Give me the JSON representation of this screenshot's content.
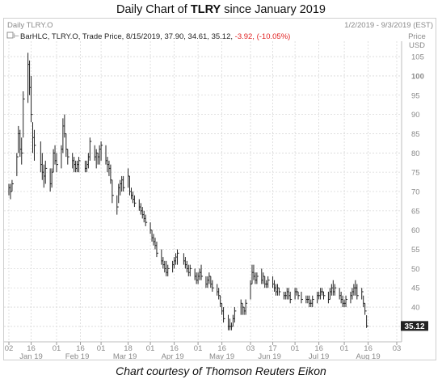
{
  "title": {
    "prefix": "Daily Chart of ",
    "ticker": "TLRY",
    "suffix": " since January 2019"
  },
  "caption": "Chart courtesy of Thomson Reuters Eikon",
  "header": {
    "symbol": "Daily TLRY.O",
    "date_range": "1/2/2019 - 9/3/2019 (EST)",
    "quote_prefix": "BarHLC, TLRY.O, Trade Price, 8/15/2019, 37.90, 34.61, 35.12, ",
    "quote_change": "-3.92, (-10.05%)",
    "axis_title_line1": "Price",
    "axis_title_line2": "USD",
    "last_price": "35.12"
  },
  "colors": {
    "bar": "#222222",
    "grid": "#d9d9d9",
    "change_negative": "#e02020",
    "last_price_box": "#222222",
    "axis_text": "#8a8a8a"
  },
  "chart_data": {
    "type": "bar",
    "style": "HLC",
    "title": "Daily Chart of TLRY since January 2019",
    "ylabel": "Price USD",
    "ylim": [
      31,
      109
    ],
    "y_ticks": [
      35,
      40,
      45,
      50,
      55,
      60,
      65,
      70,
      75,
      80,
      85,
      90,
      95,
      100,
      105
    ],
    "grid": true,
    "x_tick_labels": [
      "02",
      "16",
      "01",
      "16",
      "01",
      "18",
      "01",
      "16",
      "01",
      "16",
      "03",
      "17",
      "01",
      "16",
      "01",
      "16",
      "03"
    ],
    "month_labels": [
      "Jan 19",
      "Feb 19",
      "Mar 19",
      "Apr 19",
      "May 19",
      "Jun 19",
      "Jul 19",
      "Aug 19"
    ],
    "x_range": [
      "2019-01-02",
      "2019-09-03"
    ],
    "series": [
      {
        "values": [
          [
            "2019-01-02",
            72,
            69,
            71
          ],
          [
            "2019-01-03",
            72,
            68,
            70
          ],
          [
            "2019-01-04",
            73,
            70,
            72
          ],
          [
            "2019-01-07",
            80,
            74,
            79
          ],
          [
            "2019-01-08",
            87,
            80,
            85
          ],
          [
            "2019-01-09",
            86,
            79,
            81
          ],
          [
            "2019-01-10",
            84,
            77,
            80
          ],
          [
            "2019-01-11",
            96,
            84,
            94
          ],
          [
            "2019-01-14",
            106,
            93,
            103
          ],
          [
            "2019-01-15",
            104,
            95,
            97
          ],
          [
            "2019-01-16",
            100,
            88,
            90
          ],
          [
            "2019-01-17",
            88,
            80,
            84
          ],
          [
            "2019-01-18",
            86,
            78,
            82
          ],
          [
            "2019-01-22",
            83,
            75,
            77
          ],
          [
            "2019-01-23",
            80,
            73,
            75
          ],
          [
            "2019-01-24",
            77,
            71,
            74
          ],
          [
            "2019-01-25",
            78,
            72,
            76
          ],
          [
            "2019-01-28",
            76,
            70,
            72
          ],
          [
            "2019-01-29",
            76,
            71,
            75
          ],
          [
            "2019-01-30",
            81,
            75,
            80
          ],
          [
            "2019-01-31",
            82,
            77,
            78
          ],
          [
            "2019-02-01",
            80,
            75,
            77
          ],
          [
            "2019-02-04",
            82,
            76,
            81
          ],
          [
            "2019-02-05",
            89,
            80,
            87
          ],
          [
            "2019-02-06",
            90,
            84,
            85
          ],
          [
            "2019-02-07",
            85,
            79,
            81
          ],
          [
            "2019-02-08",
            81,
            77,
            79
          ],
          [
            "2019-02-11",
            80,
            76,
            78
          ],
          [
            "2019-02-12",
            79,
            75,
            77
          ],
          [
            "2019-02-13",
            78,
            75,
            76
          ],
          [
            "2019-02-14",
            78,
            75,
            77
          ],
          [
            "2019-02-15",
            79,
            75,
            78
          ],
          [
            "2019-02-19",
            78,
            75,
            76
          ],
          [
            "2019-02-20",
            78,
            75,
            77
          ],
          [
            "2019-02-21",
            80,
            76,
            79
          ],
          [
            "2019-02-22",
            84,
            78,
            83
          ],
          [
            "2019-02-25",
            82,
            78,
            79
          ],
          [
            "2019-02-26",
            81,
            76,
            80
          ],
          [
            "2019-02-27",
            80,
            77,
            79
          ],
          [
            "2019-02-28",
            82,
            77,
            81
          ],
          [
            "2019-03-01",
            83,
            78,
            82
          ],
          [
            "2019-03-04",
            82,
            77,
            78
          ],
          [
            "2019-03-05",
            79,
            75,
            77
          ],
          [
            "2019-03-06",
            78,
            74,
            76
          ],
          [
            "2019-03-07",
            77,
            72,
            73
          ],
          [
            "2019-03-08",
            73,
            67,
            69
          ],
          [
            "2019-03-11",
            69,
            64,
            66
          ],
          [
            "2019-03-12",
            72,
            67,
            71
          ],
          [
            "2019-03-13",
            73,
            69,
            72
          ],
          [
            "2019-03-14",
            74,
            70,
            73
          ],
          [
            "2019-03-15",
            74,
            70,
            71
          ],
          [
            "2019-03-18",
            76,
            71,
            74
          ],
          [
            "2019-03-19",
            74,
            69,
            70
          ],
          [
            "2019-03-20",
            71,
            68,
            69
          ],
          [
            "2019-03-21",
            70,
            67,
            68
          ],
          [
            "2019-03-22",
            69,
            66,
            67
          ],
          [
            "2019-03-25",
            68,
            65,
            66
          ],
          [
            "2019-03-26",
            67,
            64,
            65
          ],
          [
            "2019-03-27",
            66,
            63,
            64
          ],
          [
            "2019-03-28",
            65,
            62,
            63
          ],
          [
            "2019-03-29",
            64,
            61,
            62
          ],
          [
            "2019-04-01",
            62,
            59,
            60
          ],
          [
            "2019-04-02",
            60,
            57,
            58
          ],
          [
            "2019-04-03",
            59,
            56,
            57
          ],
          [
            "2019-04-04",
            58,
            55,
            56
          ],
          [
            "2019-04-05",
            57,
            53,
            54
          ],
          [
            "2019-04-08",
            55,
            51,
            52
          ],
          [
            "2019-04-09",
            53,
            50,
            51
          ],
          [
            "2019-04-10",
            52,
            49,
            50
          ],
          [
            "2019-04-11",
            52,
            48,
            49
          ],
          [
            "2019-04-12",
            51,
            48,
            50
          ],
          [
            "2019-04-15",
            52,
            49,
            51
          ],
          [
            "2019-04-16",
            53,
            50,
            52
          ],
          [
            "2019-04-17",
            54,
            51,
            53
          ],
          [
            "2019-04-18",
            55,
            51,
            54
          ],
          [
            "2019-04-22",
            54,
            51,
            52
          ],
          [
            "2019-04-23",
            53,
            50,
            51
          ],
          [
            "2019-04-24",
            52,
            49,
            50
          ],
          [
            "2019-04-25",
            51,
            48,
            49
          ],
          [
            "2019-04-26",
            51,
            48,
            50
          ],
          [
            "2019-04-29",
            50,
            47,
            48
          ],
          [
            "2019-04-30",
            49,
            46,
            47
          ],
          [
            "2019-05-01",
            49,
            46,
            48
          ],
          [
            "2019-05-02",
            50,
            47,
            49
          ],
          [
            "2019-05-03",
            51,
            47,
            48
          ],
          [
            "2019-05-06",
            48,
            45,
            46
          ],
          [
            "2019-05-07",
            48,
            45,
            47
          ],
          [
            "2019-05-08",
            49,
            46,
            48
          ],
          [
            "2019-05-09",
            48,
            45,
            46
          ],
          [
            "2019-05-10",
            47,
            44,
            45
          ],
          [
            "2019-05-13",
            46,
            43,
            44
          ],
          [
            "2019-05-14",
            45,
            42,
            43
          ],
          [
            "2019-05-15",
            43,
            40,
            41
          ],
          [
            "2019-05-16",
            41,
            38,
            39
          ],
          [
            "2019-05-17",
            40,
            36,
            37
          ],
          [
            "2019-05-20",
            38,
            34,
            35
          ],
          [
            "2019-05-21",
            37,
            34,
            35
          ],
          [
            "2019-05-22",
            36,
            34,
            35
          ],
          [
            "2019-05-23",
            38,
            35,
            37
          ],
          [
            "2019-05-24",
            40,
            36,
            39
          ],
          [
            "2019-05-28",
            42,
            38,
            41
          ],
          [
            "2019-05-29",
            41,
            38,
            40
          ],
          [
            "2019-05-30",
            40,
            38,
            39
          ],
          [
            "2019-05-31",
            42,
            38,
            41
          ],
          [
            "2019-06-03",
            47,
            42,
            46
          ],
          [
            "2019-06-04",
            51,
            46,
            49
          ],
          [
            "2019-06-05",
            51,
            47,
            48
          ],
          [
            "2019-06-06",
            49,
            46,
            47
          ],
          [
            "2019-06-07",
            49,
            46,
            48
          ],
          [
            "2019-06-10",
            50,
            46,
            47
          ],
          [
            "2019-06-11",
            49,
            46,
            48
          ],
          [
            "2019-06-12",
            48,
            45,
            46
          ],
          [
            "2019-06-13",
            47,
            45,
            46
          ],
          [
            "2019-06-14",
            48,
            45,
            47
          ],
          [
            "2019-06-17",
            48,
            45,
            46
          ],
          [
            "2019-06-18",
            47,
            44,
            45
          ],
          [
            "2019-06-19",
            46,
            43,
            44
          ],
          [
            "2019-06-20",
            46,
            43,
            45
          ],
          [
            "2019-06-21",
            45,
            43,
            44
          ],
          [
            "2019-06-24",
            44,
            42,
            43
          ],
          [
            "2019-06-25",
            44,
            42,
            43
          ],
          [
            "2019-06-26",
            45,
            42,
            44
          ],
          [
            "2019-06-27",
            45,
            42,
            43
          ],
          [
            "2019-06-28",
            44,
            41,
            42
          ],
          [
            "2019-07-01",
            45,
            42,
            44
          ],
          [
            "2019-07-02",
            45,
            43,
            44
          ],
          [
            "2019-07-03",
            44,
            42,
            43
          ],
          [
            "2019-07-05",
            44,
            41,
            42
          ],
          [
            "2019-07-08",
            43,
            41,
            42
          ],
          [
            "2019-07-09",
            43,
            41,
            42
          ],
          [
            "2019-07-10",
            43,
            40,
            41
          ],
          [
            "2019-07-11",
            42,
            40,
            41
          ],
          [
            "2019-07-12",
            43,
            40,
            42
          ],
          [
            "2019-07-15",
            44,
            41,
            43
          ],
          [
            "2019-07-16",
            44,
            42,
            43
          ],
          [
            "2019-07-17",
            45,
            42,
            44
          ],
          [
            "2019-07-18",
            45,
            43,
            44
          ],
          [
            "2019-07-19",
            44,
            42,
            43
          ],
          [
            "2019-07-22",
            44,
            41,
            42
          ],
          [
            "2019-07-23",
            45,
            42,
            44
          ],
          [
            "2019-07-24",
            46,
            43,
            45
          ],
          [
            "2019-07-25",
            47,
            43,
            44
          ],
          [
            "2019-07-26",
            46,
            43,
            45
          ],
          [
            "2019-07-29",
            45,
            42,
            43
          ],
          [
            "2019-07-30",
            44,
            41,
            42
          ],
          [
            "2019-07-31",
            43,
            40,
            41
          ],
          [
            "2019-08-01",
            42,
            40,
            41
          ],
          [
            "2019-08-02",
            43,
            40,
            42
          ],
          [
            "2019-08-05",
            44,
            41,
            43
          ],
          [
            "2019-08-06",
            45,
            42,
            44
          ],
          [
            "2019-08-07",
            46,
            43,
            45
          ],
          [
            "2019-08-08",
            47,
            43,
            45
          ],
          [
            "2019-08-09",
            46,
            42,
            43
          ],
          [
            "2019-08-12",
            45,
            42,
            44
          ],
          [
            "2019-08-13",
            43,
            40,
            41
          ],
          [
            "2019-08-14",
            41,
            38,
            39
          ],
          [
            "2019-08-15",
            37.9,
            34.61,
            35.12
          ]
        ]
      }
    ]
  }
}
